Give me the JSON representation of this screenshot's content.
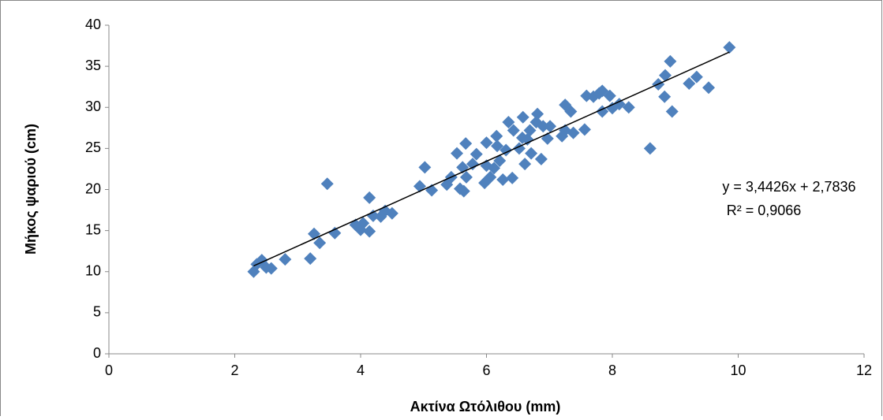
{
  "chart_data": {
    "type": "scatter",
    "x_label": "Ακτίνα Ωτόλιθου (mm)",
    "y_label": "Μήκος ψαριού (cm)",
    "series": [
      {
        "color": "#4f81bd",
        "x": [
          2.3,
          2.35,
          2.43,
          2.5,
          2.58,
          2.8,
          3.2,
          3.26,
          3.35,
          3.59,
          3.47,
          3.92,
          4.0,
          4.04,
          4.14,
          4.14,
          4.2,
          4.32,
          4.39,
          4.5,
          4.94,
          5.02,
          5.13,
          5.37,
          5.44,
          5.53,
          5.58,
          5.62,
          5.64,
          5.67,
          5.68,
          5.78,
          5.84,
          5.97,
          6.0,
          6.0,
          6.06,
          6.12,
          6.17,
          6.16,
          6.21,
          6.26,
          6.31,
          6.35,
          6.41,
          6.43,
          6.52,
          6.57,
          6.58,
          6.61,
          6.65,
          6.69,
          6.71,
          6.79,
          6.81,
          6.87,
          6.9,
          6.97,
          7.01,
          7.2,
          7.25,
          7.25,
          7.34,
          7.38,
          7.56,
          7.59,
          7.7,
          7.79,
          7.84,
          7.84,
          7.96,
          8.0,
          8.11,
          8.26,
          8.6,
          8.73,
          8.83,
          8.84,
          8.92,
          8.95,
          9.22,
          9.34,
          9.53,
          9.86
        ],
        "values": [
          10.0,
          10.9,
          11.4,
          10.5,
          10.4,
          11.5,
          11.6,
          14.6,
          13.5,
          14.7,
          20.7,
          15.7,
          15.1,
          15.9,
          14.9,
          19.0,
          16.8,
          16.7,
          17.4,
          17.1,
          20.4,
          22.7,
          19.9,
          20.6,
          21.5,
          24.4,
          20.1,
          22.7,
          19.8,
          25.6,
          21.5,
          23.1,
          24.3,
          20.8,
          22.9,
          25.7,
          21.5,
          22.6,
          25.3,
          26.5,
          23.5,
          21.2,
          24.8,
          28.2,
          21.4,
          27.2,
          25.0,
          26.3,
          28.8,
          23.1,
          26.1,
          27.2,
          24.4,
          28.2,
          29.2,
          23.7,
          27.7,
          26.2,
          27.7,
          26.5,
          27.2,
          30.3,
          29.5,
          26.9,
          27.3,
          31.4,
          31.3,
          31.7,
          29.5,
          32.0,
          31.4,
          29.9,
          30.4,
          30.0,
          25.0,
          32.8,
          31.3,
          33.9,
          35.6,
          29.5,
          32.9,
          33.7,
          32.4,
          37.3
        ]
      }
    ],
    "trendline": {
      "slope": 3.4426,
      "intercept": 2.7836,
      "color": "#000000"
    },
    "annotations": [
      "y = 3,4426x + 2,7836",
      "R² = 0,9066"
    ],
    "xlim": [
      0,
      12
    ],
    "xticks": [
      0,
      2,
      4,
      6,
      8,
      10,
      12
    ],
    "ylim": [
      0,
      40
    ],
    "yticks": [
      0,
      5,
      10,
      15,
      20,
      25,
      30,
      35,
      40
    ]
  }
}
